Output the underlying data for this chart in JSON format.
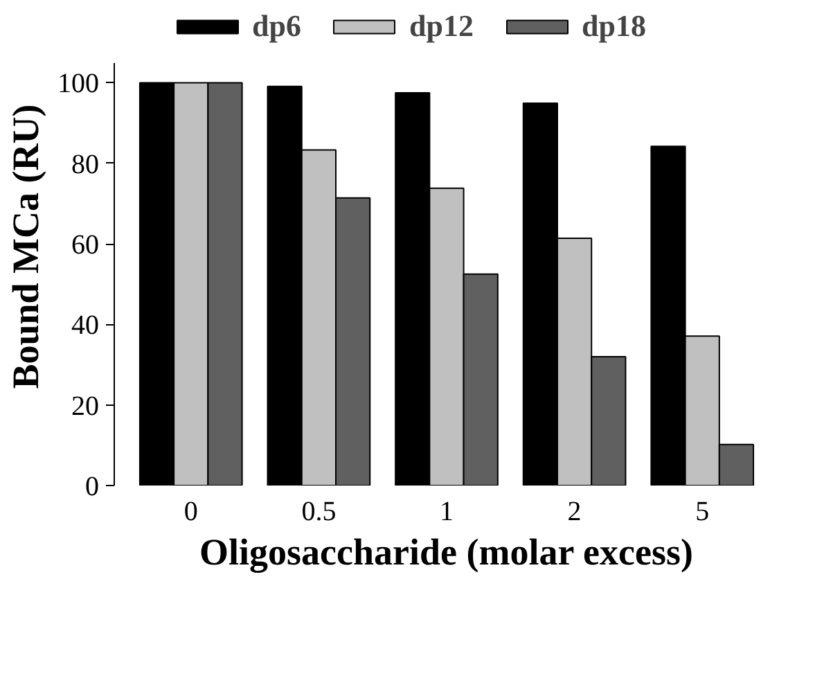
{
  "chart_data": {
    "type": "bar",
    "xlabel": "Oligosaccharide (molar excess)",
    "ylabel": "Bound MCa (RU)",
    "categories": [
      "0",
      "0.5",
      "1",
      "2",
      "5"
    ],
    "series": [
      {
        "name": "dp6",
        "color": "#000000",
        "values": [
          100,
          99.1,
          97.5,
          94.9,
          84.2
        ]
      },
      {
        "name": "dp12",
        "color": "#c0c0c0",
        "values": [
          100,
          83.3,
          73.8,
          61.4,
          37.1
        ]
      },
      {
        "name": "dp18",
        "color": "#606060",
        "values": [
          100,
          71.4,
          52.5,
          32,
          10.2
        ]
      }
    ],
    "ylim": [
      0,
      105
    ],
    "yticks": [
      0,
      20,
      40,
      60,
      80,
      100
    ],
    "grid": false,
    "legend": "top"
  }
}
